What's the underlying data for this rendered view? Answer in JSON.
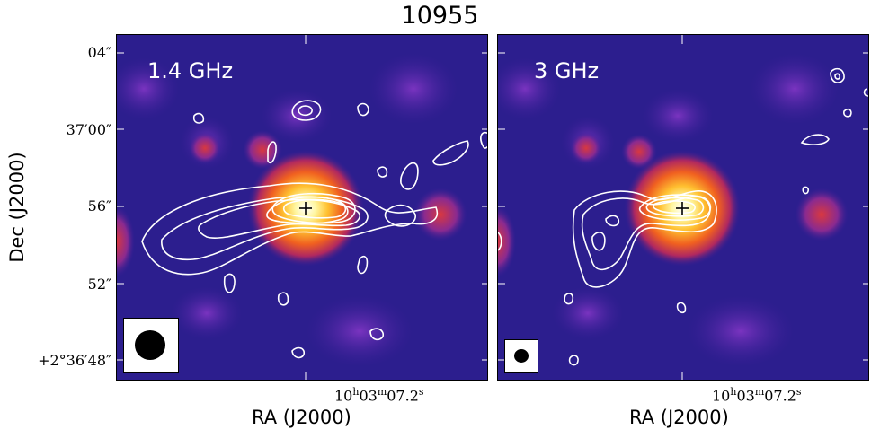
{
  "figure": {
    "title": "10955",
    "colormap": [
      "#2a1c8a",
      "#5a2aa8",
      "#c0305a",
      "#f05a20",
      "#ffd040",
      "#ffffff"
    ],
    "contour_color": "#ffffff"
  },
  "panels": [
    {
      "label": "1.4 GHz",
      "xlabel": "RA (J2000)",
      "xtick": "10h03m07.2s",
      "beam": "large"
    },
    {
      "label": "3 GHz",
      "xlabel": "RA (J2000)",
      "xtick": "10h03m07.2s",
      "beam": "small"
    }
  ],
  "yaxis": {
    "label": "Dec (J2000)",
    "ticks": [
      "04″",
      "37′00″",
      "56″",
      "52″",
      "+2°36′48″"
    ]
  },
  "marker": "plus-icon"
}
